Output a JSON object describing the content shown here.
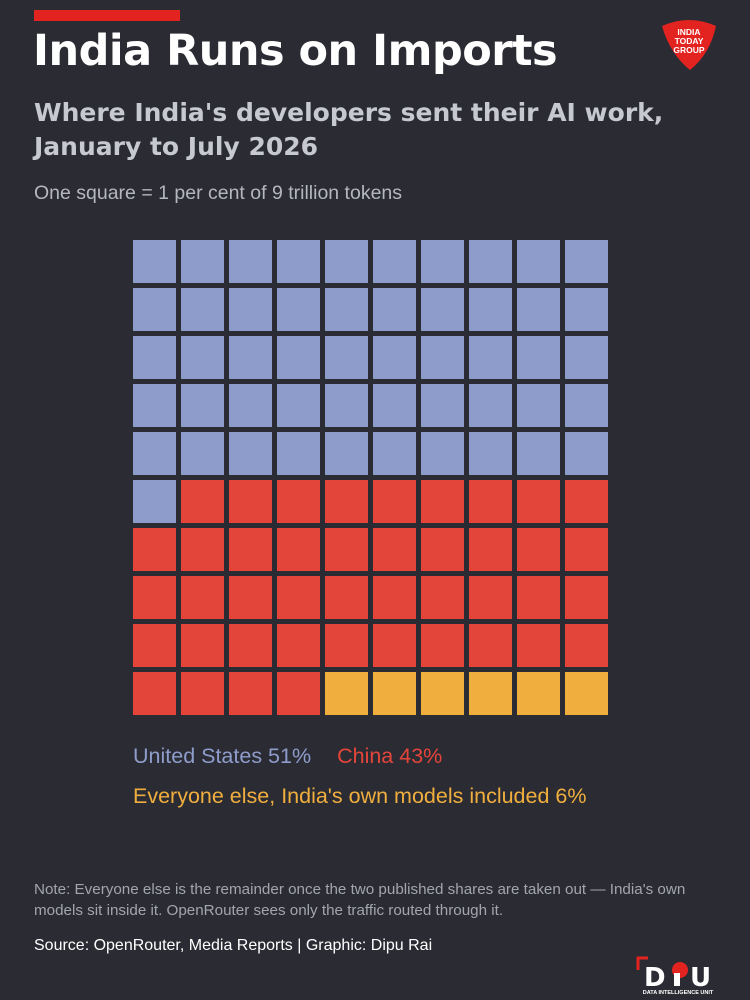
{
  "header": {
    "title": "India Runs on Imports",
    "subtitle": "Where India's developers sent their AI work, January to July 2026",
    "caption": "One square = 1 per cent of 9 trillion tokens",
    "logo_text": "INDIA TODAY GROUP"
  },
  "chart_data": {
    "type": "waffle",
    "rows": 10,
    "cols": 10,
    "series": [
      {
        "name": "United States",
        "value": 51,
        "label": "United States 51%",
        "color": "#8e9ccc"
      },
      {
        "name": "China",
        "value": 43,
        "label": "China 43%",
        "color": "#e4453b"
      },
      {
        "name": "Everyone else, India's own models included",
        "value": 6,
        "label": "Everyone else, India's own models included 6%",
        "color": "#f0ae3e"
      }
    ]
  },
  "footer": {
    "note": "Note: Everyone else is the remainder once the two published shares are taken out — India's own models sit inside it. OpenRouter sees only the traffic routed through it.",
    "source": "Source: OpenRouter, Media Reports | Graphic: Dipu Rai",
    "brand_mark": "DIU",
    "brand_subtitle": "DATA INTELLIGENCE UNIT"
  },
  "colors": {
    "background": "#2b2c33",
    "accent": "#e3231f"
  }
}
